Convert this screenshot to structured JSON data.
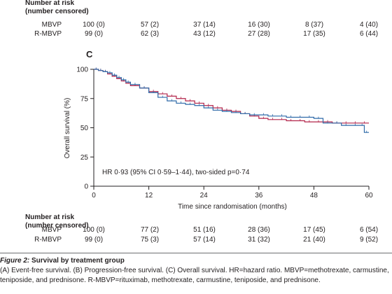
{
  "top_risk": {
    "title_line1": "Number at risk",
    "title_line2": "(number censored)",
    "rows": [
      {
        "label": "MBVP",
        "cells": [
          "100 (0)",
          "57 (2)",
          "37 (14)",
          "16 (30)",
          "8 (37)",
          "4 (40)"
        ]
      },
      {
        "label": "R-MBVP",
        "cells": [
          "99 (0)",
          "62 (3)",
          "43 (12)",
          "27 (28)",
          "17 (35)",
          "6 (44)"
        ]
      }
    ]
  },
  "panel_letter": "C",
  "hr_text": "HR 0·93 (95% CI 0·59–1·44), two-sided p=0·74",
  "chart_data": {
    "type": "line",
    "xlabel": "Time since randomisation (months)",
    "ylabel": "Overall survival (%)",
    "xlim": [
      0,
      60
    ],
    "ylim": [
      0,
      100
    ],
    "xticks": [
      0,
      12,
      24,
      36,
      48,
      60
    ],
    "yticks": [
      0,
      25,
      50,
      75,
      100
    ],
    "grid": false,
    "series": [
      {
        "color": "#b2244a",
        "x": [
          0,
          1,
          2,
          3,
          4,
          5,
          6,
          7,
          8,
          10,
          12,
          14,
          16,
          18,
          20,
          22,
          24,
          26,
          28,
          30,
          32,
          34,
          36,
          38,
          40,
          42,
          44,
          46,
          48,
          50,
          52,
          54,
          56,
          58,
          60
        ],
        "y": [
          100,
          99,
          98,
          96,
          94,
          92,
          90,
          88,
          86,
          84,
          81,
          79,
          77,
          75,
          73,
          71,
          69,
          67,
          65,
          64,
          62,
          60,
          58,
          57,
          57,
          56,
          56,
          55,
          55,
          55,
          54,
          54,
          54,
          54,
          54
        ]
      },
      {
        "color": "#2f6aa8",
        "x": [
          0,
          1,
          2,
          3,
          4,
          5,
          6,
          7,
          8,
          10,
          12,
          14,
          16,
          18,
          20,
          22,
          24,
          26,
          28,
          30,
          32,
          34,
          36,
          38,
          40,
          42,
          44,
          46,
          48,
          50,
          52,
          54,
          56,
          58,
          59,
          60
        ],
        "y": [
          100,
          99,
          98,
          97,
          95,
          93,
          91,
          89,
          87,
          84,
          80,
          76,
          73,
          71,
          70,
          69,
          67,
          65,
          64,
          63,
          62,
          61,
          61,
          60,
          60,
          59,
          59,
          59,
          58,
          54,
          54,
          52,
          52,
          52,
          46,
          46
        ]
      }
    ]
  },
  "bottom_risk": {
    "title_line1": "Number at risk",
    "title_line2": "(number censored)",
    "rows": [
      {
        "label": "MBVP",
        "cells": [
          "100 (0)",
          "77 (2)",
          "51 (16)",
          "28 (36)",
          "17 (45)",
          "6 (54)"
        ]
      },
      {
        "label": "R-MBVP",
        "cells": [
          "99 (0)",
          "75 (3)",
          "57 (14)",
          "31 (32)",
          "21 (40)",
          "9 (52)"
        ]
      }
    ]
  },
  "caption": {
    "figure_label": "Figure 2:",
    "title": " Survival by treatment group",
    "body": "(A) Event-free survival. (B) Progression-free survival. (C) Overall survival. HR=hazard ratio. MBVP=methotrexate, carmustine, teniposide, and prednisone. R-MBVP=rituximab, methotrexate, carmustine, teniposide, and prednisone."
  }
}
